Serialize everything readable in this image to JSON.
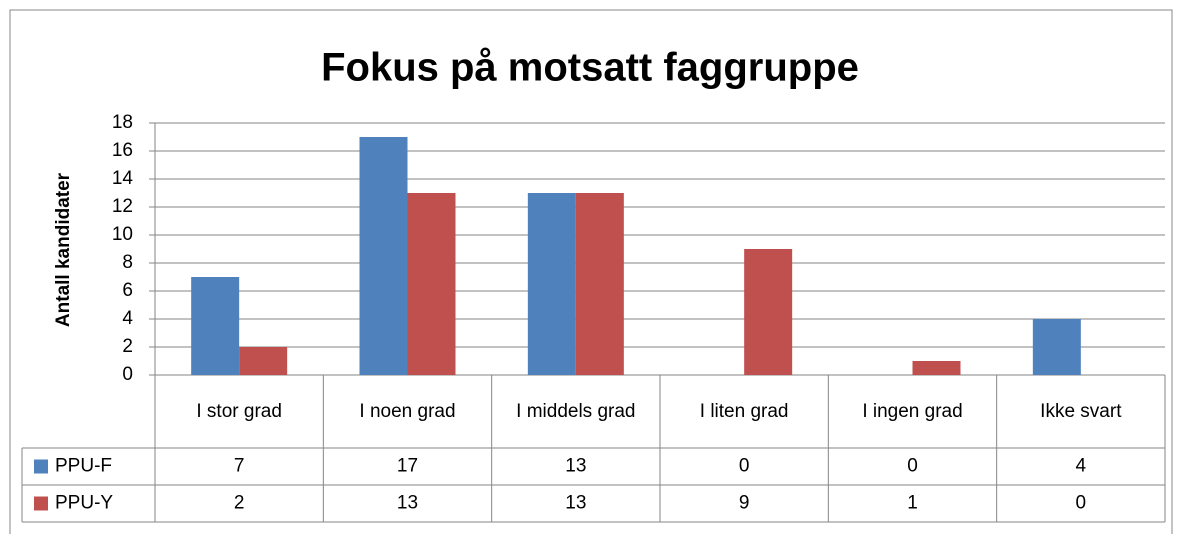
{
  "chart_data": {
    "type": "bar",
    "title": "Fokus på motsatt faggruppe",
    "y_label": "Antall kandidater",
    "categories": [
      "I stor grad",
      "I noen grad",
      "I middels grad",
      "I liten grad",
      "I ingen grad",
      "Ikke svart"
    ],
    "series": [
      {
        "name": "PPU-F",
        "color": "#4f81bd",
        "values": [
          7,
          17,
          13,
          0,
          0,
          4
        ]
      },
      {
        "name": "PPU-Y",
        "color": "#c0504d",
        "values": [
          2,
          13,
          13,
          9,
          1,
          0
        ]
      }
    ],
    "ylim": [
      0,
      18
    ],
    "yticks": [
      0,
      2,
      4,
      6,
      8,
      10,
      12,
      14,
      16,
      18
    ],
    "grid": true
  }
}
